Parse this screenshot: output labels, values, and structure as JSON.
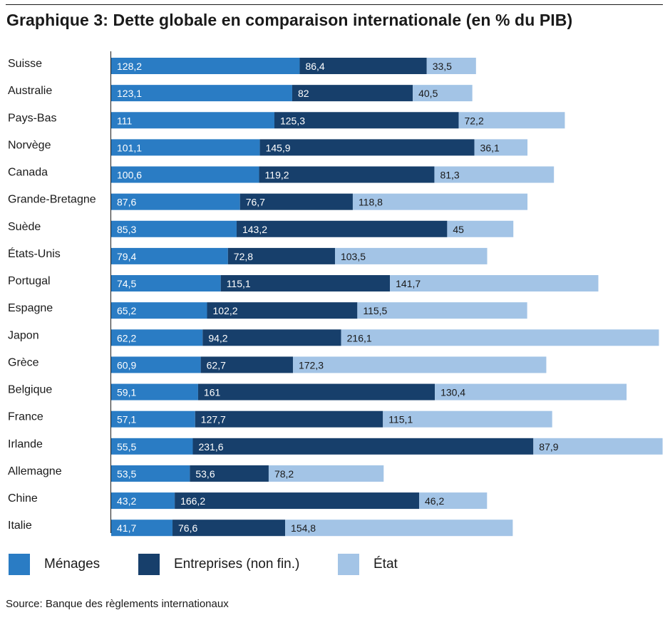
{
  "title": "Graphique 3: Dette globale en comparaison internationale (en % du PIB)",
  "source": "Source: Banque des règlements internationaux",
  "colors": {
    "menages": "#2a7cc4",
    "entreprises": "#173f6b",
    "etat": "#a3c4e6"
  },
  "legend": [
    {
      "label": "Ménages",
      "color": "#2a7cc4"
    },
    {
      "label": "Entreprises (non fin.)",
      "color": "#173f6b"
    },
    {
      "label": "État",
      "color": "#a3c4e6"
    }
  ],
  "chart_data": {
    "type": "bar",
    "orientation": "horizontal",
    "stacked": true,
    "title": "Graphique 3: Dette globale en comparaison internationale (en % du PIB)",
    "categories": [
      "Suisse",
      "Australie",
      "Pays-Bas",
      "Norvège",
      "Canada",
      "Grande-Bretagne",
      "Suède",
      "États-Unis",
      "Portugal",
      "Espagne",
      "Japon",
      "Grèce",
      "Belgique",
      "France",
      "Irlande",
      "Allemagne",
      "Chine",
      "Italie"
    ],
    "series": [
      {
        "name": "Ménages",
        "values": [
          128.2,
          123.1,
          111,
          101.1,
          100.6,
          87.6,
          85.3,
          79.4,
          74.5,
          65.2,
          62.2,
          60.9,
          59.1,
          57.1,
          55.5,
          53.5,
          43.2,
          41.7
        ]
      },
      {
        "name": "Entreprises (non fin.)",
        "values": [
          86.4,
          82,
          125.3,
          145.9,
          119.2,
          76.7,
          143.2,
          72.8,
          115.1,
          102.2,
          94.2,
          62.7,
          161,
          127.7,
          231.6,
          53.6,
          166.2,
          76.6
        ]
      },
      {
        "name": "État",
        "values": [
          33.5,
          40.5,
          72.2,
          36.1,
          81.3,
          118.8,
          45,
          103.5,
          141.7,
          115.5,
          216.1,
          172.3,
          130.4,
          115.1,
          87.9,
          78.2,
          46.2,
          154.8
        ]
      }
    ],
    "data_labels": [
      [
        "128,2",
        "123,1",
        "111",
        "101,1",
        "100,6",
        "87,6",
        "85,3",
        "79,4",
        "74,5",
        "65,2",
        "62,2",
        "60,9",
        "59,1",
        "57,1",
        "55,5",
        "53,5",
        "43,2",
        "41,7"
      ],
      [
        "86,4",
        "82",
        "125,3",
        "145,9",
        "119,2",
        "76,7",
        "143,2",
        "72,8",
        "115,1",
        "102,2",
        "94,2",
        "62,7",
        "161",
        "127,7",
        "231,6",
        "53,6",
        "166,2",
        "76,6"
      ],
      [
        "33,5",
        "40,5",
        "72,2",
        "36,1",
        "81,3",
        "118,8",
        "45",
        "103,5",
        "141,7",
        "115,5",
        "216,1",
        "172,3",
        "130,4",
        "115,1",
        "87,9",
        "78,2",
        "46,2",
        "154,8"
      ]
    ],
    "xlim": [
      0,
      375
    ],
    "legend_position": "bottom",
    "grid": false
  }
}
